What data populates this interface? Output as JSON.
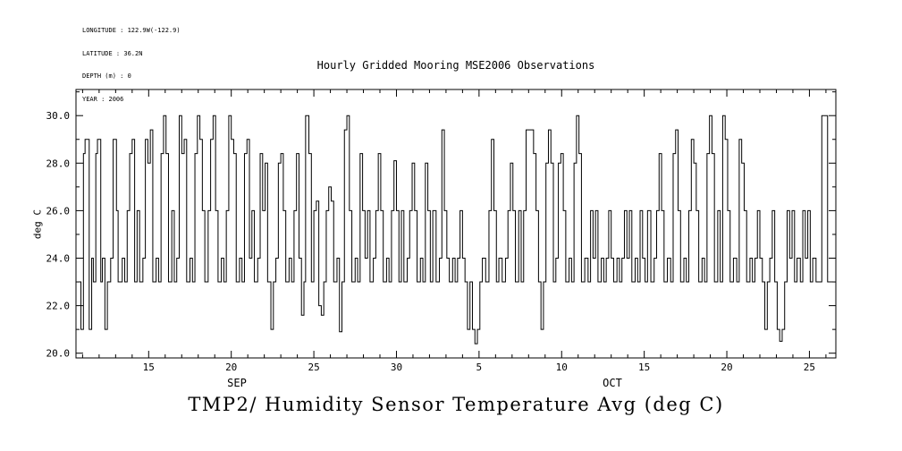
{
  "meta": {
    "longitude": "LONGITUDE : 122.9W(-122.9)",
    "latitude": "LATITUDE : 36.2N",
    "depth": "DEPTH (m) : 0",
    "year": "YEAR : 2006"
  },
  "title": "Hourly Gridded Mooring MSE2006 Observations",
  "bottom_title": "TMP2/ Humidity Sensor Temperature Avg (deg C)",
  "colors": {
    "line": "#000000",
    "axis": "#000000",
    "background": "#ffffff"
  },
  "chart_data": {
    "type": "line",
    "line_style": "step-after",
    "title": "Hourly Gridded Mooring MSE2006 Observations",
    "xlabel": "",
    "ylabel": "deg C",
    "xlim": [
      0,
      46
    ],
    "ylim": [
      19.8,
      31.1
    ],
    "grid": false,
    "legend": "none",
    "x_axis": {
      "ticks": [
        4.4,
        9.4,
        14.4,
        19.4,
        24.4,
        29.4,
        34.4,
        39.4,
        44.4
      ],
      "labels": [
        "15",
        "20",
        "25",
        "30",
        "5",
        "10",
        "15",
        "20",
        "25"
      ],
      "minor_step": 1,
      "month_labels": [
        {
          "text": "SEP",
          "x": 9.74
        },
        {
          "text": "OCT",
          "x": 32.47
        }
      ]
    },
    "y_axis": {
      "ticks": [
        20,
        22,
        24,
        26,
        28,
        30
      ],
      "labels": [
        "20.0",
        "22.0",
        "24.0",
        "26.0",
        "28.0",
        "30.0"
      ],
      "minor_step": 1
    },
    "series": [
      {
        "name": "TMP2/ Humidity Sensor Temperature Avg (deg C)",
        "steps": [
          [
            0.15,
            23
          ],
          [
            0.3,
            21
          ],
          [
            0.45,
            28.4
          ],
          [
            0.55,
            29
          ],
          [
            0.8,
            21
          ],
          [
            0.95,
            24
          ],
          [
            1.05,
            23
          ],
          [
            1.2,
            28.4
          ],
          [
            1.3,
            29
          ],
          [
            1.5,
            23
          ],
          [
            1.6,
            24
          ],
          [
            1.75,
            21
          ],
          [
            1.9,
            23
          ],
          [
            2.1,
            24
          ],
          [
            2.25,
            29
          ],
          [
            2.45,
            26
          ],
          [
            2.55,
            23
          ],
          [
            2.8,
            24
          ],
          [
            2.95,
            23
          ],
          [
            3.1,
            26
          ],
          [
            3.25,
            28.4
          ],
          [
            3.4,
            29
          ],
          [
            3.55,
            23
          ],
          [
            3.7,
            26
          ],
          [
            3.85,
            23
          ],
          [
            4.05,
            24
          ],
          [
            4.2,
            29
          ],
          [
            4.35,
            28
          ],
          [
            4.5,
            29.4
          ],
          [
            4.65,
            23
          ],
          [
            4.85,
            24
          ],
          [
            5.0,
            23
          ],
          [
            5.15,
            28.4
          ],
          [
            5.3,
            30
          ],
          [
            5.45,
            28.4
          ],
          [
            5.6,
            23
          ],
          [
            5.8,
            26
          ],
          [
            5.95,
            23
          ],
          [
            6.1,
            24
          ],
          [
            6.25,
            30
          ],
          [
            6.4,
            28.4
          ],
          [
            6.55,
            29
          ],
          [
            6.7,
            23
          ],
          [
            6.9,
            24
          ],
          [
            7.05,
            23
          ],
          [
            7.2,
            28.4
          ],
          [
            7.35,
            30
          ],
          [
            7.5,
            29
          ],
          [
            7.65,
            26
          ],
          [
            7.8,
            23
          ],
          [
            8.0,
            26
          ],
          [
            8.15,
            29
          ],
          [
            8.3,
            30
          ],
          [
            8.45,
            26
          ],
          [
            8.6,
            23
          ],
          [
            8.8,
            24
          ],
          [
            8.95,
            23
          ],
          [
            9.1,
            26
          ],
          [
            9.25,
            30
          ],
          [
            9.4,
            29
          ],
          [
            9.55,
            28.4
          ],
          [
            9.7,
            23
          ],
          [
            9.9,
            24
          ],
          [
            10.05,
            23
          ],
          [
            10.2,
            28.4
          ],
          [
            10.35,
            29
          ],
          [
            10.5,
            24
          ],
          [
            10.65,
            26
          ],
          [
            10.8,
            23
          ],
          [
            11.0,
            24
          ],
          [
            11.15,
            28.4
          ],
          [
            11.3,
            26
          ],
          [
            11.45,
            28
          ],
          [
            11.6,
            23
          ],
          [
            11.8,
            21
          ],
          [
            11.95,
            23
          ],
          [
            12.1,
            24
          ],
          [
            12.25,
            28
          ],
          [
            12.4,
            28.4
          ],
          [
            12.55,
            26
          ],
          [
            12.7,
            23
          ],
          [
            12.9,
            24
          ],
          [
            13.05,
            23
          ],
          [
            13.2,
            26
          ],
          [
            13.35,
            28.4
          ],
          [
            13.5,
            24
          ],
          [
            13.65,
            21.6
          ],
          [
            13.8,
            23
          ],
          [
            13.9,
            30
          ],
          [
            14.1,
            28.4
          ],
          [
            14.25,
            23
          ],
          [
            14.4,
            26
          ],
          [
            14.55,
            26.4
          ],
          [
            14.7,
            22
          ],
          [
            14.85,
            21.6
          ],
          [
            15.0,
            23
          ],
          [
            15.15,
            26
          ],
          [
            15.3,
            27
          ],
          [
            15.45,
            26.4
          ],
          [
            15.6,
            23
          ],
          [
            15.8,
            24
          ],
          [
            15.95,
            20.9
          ],
          [
            16.1,
            23
          ],
          [
            16.25,
            29.4
          ],
          [
            16.4,
            30
          ],
          [
            16.55,
            26
          ],
          [
            16.7,
            23
          ],
          [
            16.9,
            24
          ],
          [
            17.05,
            23
          ],
          [
            17.2,
            28.4
          ],
          [
            17.35,
            26
          ],
          [
            17.5,
            24
          ],
          [
            17.65,
            26
          ],
          [
            17.8,
            23
          ],
          [
            18.0,
            24
          ],
          [
            18.15,
            26
          ],
          [
            18.3,
            28.4
          ],
          [
            18.45,
            26
          ],
          [
            18.6,
            23
          ],
          [
            18.8,
            24
          ],
          [
            18.95,
            23
          ],
          [
            19.1,
            26
          ],
          [
            19.25,
            28.1
          ],
          [
            19.4,
            26
          ],
          [
            19.55,
            23
          ],
          [
            19.7,
            26
          ],
          [
            19.85,
            23
          ],
          [
            20.05,
            24
          ],
          [
            20.2,
            26
          ],
          [
            20.35,
            28
          ],
          [
            20.5,
            26
          ],
          [
            20.65,
            23
          ],
          [
            20.85,
            24
          ],
          [
            21.0,
            23
          ],
          [
            21.15,
            28
          ],
          [
            21.3,
            26
          ],
          [
            21.45,
            23
          ],
          [
            21.6,
            26
          ],
          [
            21.8,
            23
          ],
          [
            22.0,
            24
          ],
          [
            22.15,
            29.4
          ],
          [
            22.3,
            26
          ],
          [
            22.45,
            24
          ],
          [
            22.6,
            23
          ],
          [
            22.8,
            24
          ],
          [
            22.95,
            23
          ],
          [
            23.1,
            24
          ],
          [
            23.25,
            26
          ],
          [
            23.4,
            24
          ],
          [
            23.55,
            23
          ],
          [
            23.7,
            21
          ],
          [
            23.85,
            23
          ],
          [
            24.0,
            21
          ],
          [
            24.15,
            20.4
          ],
          [
            24.3,
            21
          ],
          [
            24.45,
            23
          ],
          [
            24.6,
            24
          ],
          [
            24.8,
            23
          ],
          [
            25.0,
            26
          ],
          [
            25.15,
            29
          ],
          [
            25.3,
            26
          ],
          [
            25.45,
            23
          ],
          [
            25.6,
            24
          ],
          [
            25.8,
            23
          ],
          [
            26.0,
            24
          ],
          [
            26.15,
            26
          ],
          [
            26.3,
            28
          ],
          [
            26.45,
            26
          ],
          [
            26.6,
            23
          ],
          [
            26.8,
            26
          ],
          [
            26.95,
            23
          ],
          [
            27.1,
            26
          ],
          [
            27.25,
            29.4
          ],
          [
            27.7,
            28.4
          ],
          [
            27.85,
            26
          ],
          [
            28.0,
            23
          ],
          [
            28.15,
            21
          ],
          [
            28.3,
            23
          ],
          [
            28.45,
            28
          ],
          [
            28.6,
            29.4
          ],
          [
            28.75,
            28
          ],
          [
            28.9,
            23
          ],
          [
            29.05,
            24
          ],
          [
            29.2,
            28
          ],
          [
            29.35,
            28.4
          ],
          [
            29.5,
            26
          ],
          [
            29.65,
            23
          ],
          [
            29.85,
            24
          ],
          [
            30.0,
            23
          ],
          [
            30.15,
            28
          ],
          [
            30.3,
            30
          ],
          [
            30.45,
            28.4
          ],
          [
            30.6,
            23
          ],
          [
            30.8,
            24
          ],
          [
            31.0,
            23
          ],
          [
            31.15,
            26
          ],
          [
            31.3,
            24
          ],
          [
            31.45,
            26
          ],
          [
            31.6,
            23
          ],
          [
            31.8,
            24
          ],
          [
            31.95,
            23
          ],
          [
            32.1,
            24
          ],
          [
            32.25,
            26
          ],
          [
            32.4,
            24
          ],
          [
            32.55,
            23
          ],
          [
            32.75,
            24
          ],
          [
            32.9,
            23
          ],
          [
            33.05,
            24
          ],
          [
            33.2,
            26
          ],
          [
            33.35,
            24
          ],
          [
            33.5,
            26
          ],
          [
            33.65,
            23
          ],
          [
            33.85,
            24
          ],
          [
            34.0,
            23
          ],
          [
            34.15,
            26
          ],
          [
            34.3,
            24
          ],
          [
            34.45,
            23
          ],
          [
            34.6,
            26
          ],
          [
            34.8,
            23
          ],
          [
            35.0,
            24
          ],
          [
            35.15,
            26
          ],
          [
            35.3,
            28.4
          ],
          [
            35.45,
            26
          ],
          [
            35.6,
            23
          ],
          [
            35.8,
            24
          ],
          [
            36.0,
            23
          ],
          [
            36.15,
            28.4
          ],
          [
            36.3,
            29.4
          ],
          [
            36.45,
            26
          ],
          [
            36.6,
            23
          ],
          [
            36.8,
            24
          ],
          [
            36.95,
            23
          ],
          [
            37.1,
            26
          ],
          [
            37.25,
            29
          ],
          [
            37.4,
            28
          ],
          [
            37.55,
            26
          ],
          [
            37.7,
            23
          ],
          [
            37.9,
            24
          ],
          [
            38.05,
            23
          ],
          [
            38.2,
            28.4
          ],
          [
            38.35,
            30
          ],
          [
            38.5,
            28.4
          ],
          [
            38.65,
            23
          ],
          [
            38.85,
            26
          ],
          [
            39.0,
            23
          ],
          [
            39.15,
            30
          ],
          [
            39.3,
            29
          ],
          [
            39.45,
            26
          ],
          [
            39.6,
            23
          ],
          [
            39.8,
            24
          ],
          [
            40.0,
            23
          ],
          [
            40.15,
            29
          ],
          [
            40.3,
            28
          ],
          [
            40.45,
            26
          ],
          [
            40.6,
            23
          ],
          [
            40.8,
            24
          ],
          [
            40.95,
            23
          ],
          [
            41.1,
            24
          ],
          [
            41.25,
            26
          ],
          [
            41.4,
            24
          ],
          [
            41.55,
            23
          ],
          [
            41.7,
            21
          ],
          [
            41.85,
            23
          ],
          [
            42.0,
            24
          ],
          [
            42.15,
            26
          ],
          [
            42.3,
            23
          ],
          [
            42.45,
            21
          ],
          [
            42.6,
            20.5
          ],
          [
            42.75,
            21
          ],
          [
            42.9,
            23
          ],
          [
            43.05,
            26
          ],
          [
            43.2,
            24
          ],
          [
            43.35,
            26
          ],
          [
            43.5,
            23
          ],
          [
            43.65,
            24
          ],
          [
            43.85,
            23
          ],
          [
            44.0,
            26
          ],
          [
            44.15,
            24
          ],
          [
            44.3,
            26
          ],
          [
            44.45,
            23
          ],
          [
            44.6,
            24
          ],
          [
            44.8,
            23
          ],
          [
            45.0,
            23
          ],
          [
            45.15,
            30
          ],
          [
            45.5,
            23
          ],
          [
            45.85,
            23
          ]
        ]
      }
    ]
  }
}
